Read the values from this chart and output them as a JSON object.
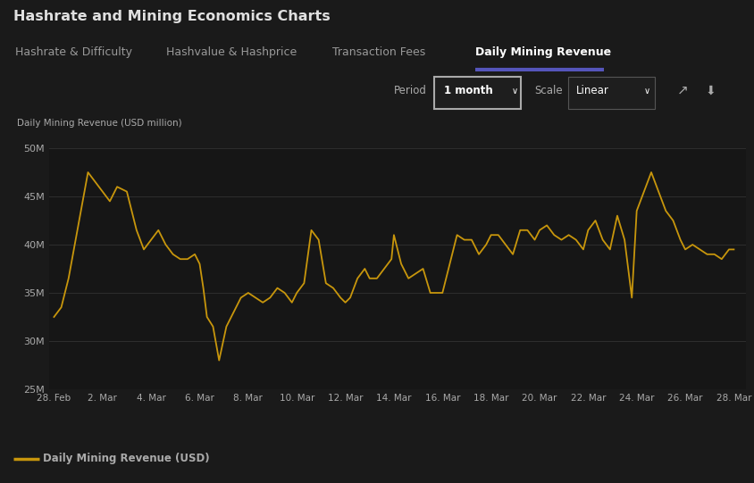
{
  "title": "Hashrate and Mining Economics Charts",
  "tabs": [
    "Hashrate & Difficulty",
    "Hashvalue & Hashprice",
    "Transaction Fees",
    "Daily Mining Revenue"
  ],
  "active_tab": "Daily Mining Revenue",
  "period_label": "1 month",
  "scale_label": "Linear",
  "ylabel": "Daily Mining Revenue (USD million)",
  "legend_label": "Daily Mining Revenue (USD)",
  "line_color": "#c8960c",
  "bg_title": "#2d2d2d",
  "bg_tabs": "#111111",
  "bg_controls": "#1e1e1e",
  "bg_chart": "#1a1a1a",
  "bg_plot": "#161616",
  "grid_color": "#2e2e2e",
  "text_color": "#aaaaaa",
  "title_color": "#e0e0e0",
  "tab_active_color": "#ffffff",
  "tab_inactive_color": "#999999",
  "underline_color": "#5555bb",
  "ylim": [
    25,
    50
  ],
  "yticks": [
    25,
    30,
    35,
    40,
    45,
    50
  ],
  "ytick_labels": [
    "25M",
    "30M",
    "35M",
    "40M",
    "45M",
    "50M"
  ],
  "xtick_labels": [
    "28. Feb",
    "2. Mar",
    "4. Mar",
    "6. Mar",
    "8. Mar",
    "10. Mar",
    "12. Mar",
    "14. Mar",
    "16. Mar",
    "18. Mar",
    "20. Mar",
    "22. Mar",
    "24. Mar",
    "26. Mar",
    "28. Mar"
  ],
  "x_ticks": [
    0,
    2,
    4,
    6,
    8,
    10,
    12,
    14,
    16,
    18,
    20,
    22,
    24,
    26,
    28
  ],
  "x_data": [
    0,
    0.3,
    0.6,
    1.0,
    1.4,
    1.7,
    2.0,
    2.3,
    2.6,
    3.0,
    3.4,
    3.7,
    4.0,
    4.15,
    4.3,
    4.6,
    4.9,
    5.2,
    5.5,
    5.8,
    6.0,
    6.15,
    6.3,
    6.55,
    6.8,
    7.1,
    7.4,
    7.7,
    8.0,
    8.3,
    8.6,
    8.9,
    9.2,
    9.5,
    9.8,
    10.0,
    10.3,
    10.6,
    10.9,
    11.2,
    11.5,
    11.8,
    12.0,
    12.2,
    12.5,
    12.8,
    13.0,
    13.3,
    13.6,
    13.9,
    14.0,
    14.3,
    14.6,
    14.9,
    15.2,
    15.5,
    15.8,
    16.0,
    16.3,
    16.6,
    16.9,
    17.2,
    17.5,
    17.8,
    18.0,
    18.3,
    18.6,
    18.9,
    19.2,
    19.5,
    19.8,
    20.0,
    20.3,
    20.6,
    20.9,
    21.2,
    21.5,
    21.8,
    22.0,
    22.3,
    22.6,
    22.9,
    23.2,
    23.5,
    23.8,
    24.0,
    24.3,
    24.6,
    24.9,
    25.2,
    25.5,
    25.8,
    26.0,
    26.3,
    26.6,
    26.9,
    27.2,
    27.5,
    27.8,
    28.0
  ],
  "y_data": [
    32.5,
    33.5,
    36.5,
    42.0,
    47.5,
    46.5,
    45.5,
    44.5,
    46.0,
    45.5,
    41.5,
    39.5,
    40.5,
    41.0,
    41.5,
    40.0,
    39.0,
    38.5,
    38.5,
    39.0,
    38.0,
    35.5,
    32.5,
    31.5,
    28.0,
    31.5,
    33.0,
    34.5,
    35.0,
    34.5,
    34.0,
    34.5,
    35.5,
    35.0,
    34.0,
    35.0,
    36.0,
    41.5,
    40.5,
    36.0,
    35.5,
    34.5,
    34.0,
    34.5,
    36.5,
    37.5,
    36.5,
    36.5,
    37.5,
    38.5,
    41.0,
    38.0,
    36.5,
    37.0,
    37.5,
    35.0,
    35.0,
    35.0,
    38.0,
    41.0,
    40.5,
    40.5,
    39.0,
    40.0,
    41.0,
    41.0,
    40.0,
    39.0,
    41.5,
    41.5,
    40.5,
    41.5,
    42.0,
    41.0,
    40.5,
    41.0,
    40.5,
    39.5,
    41.5,
    42.5,
    40.5,
    39.5,
    43.0,
    40.5,
    34.5,
    43.5,
    45.5,
    47.5,
    45.5,
    43.5,
    42.5,
    40.5,
    39.5,
    40.0,
    39.5,
    39.0,
    39.0,
    38.5,
    39.5,
    39.5
  ]
}
